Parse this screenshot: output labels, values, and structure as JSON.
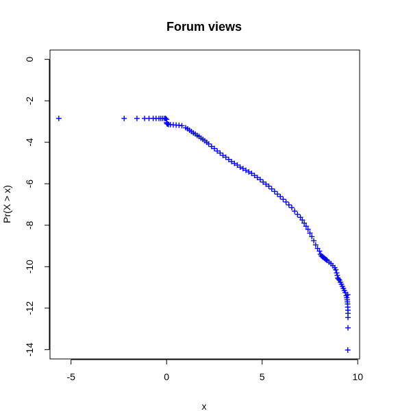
{
  "chart_data": {
    "type": "scatter",
    "title": "Forum views",
    "xlabel": "x",
    "ylabel": "Pr(X > x)",
    "xlim": [
      -6.1,
      10.1
    ],
    "ylim": [
      -14.45,
      0.45
    ],
    "xticks": [
      -5,
      0,
      5,
      10
    ],
    "yticks": [
      0,
      -2,
      -4,
      -6,
      -8,
      -10,
      -12,
      -14
    ],
    "xtick_labels": [
      "-5",
      "0",
      "5",
      "10"
    ],
    "ytick_labels": [
      "0",
      "-2",
      "-4",
      "-6",
      "-8",
      "-10",
      "-12",
      "-14"
    ],
    "marker": "+",
    "point_color": "#0000ff",
    "grid": false,
    "legend": "none",
    "x": [
      -5.64,
      -2.22,
      -1.55,
      -1.15,
      -0.92,
      -0.7,
      -0.55,
      -0.4,
      -0.3,
      -0.2,
      -0.1,
      -0.05,
      0,
      0,
      0.02,
      0.05,
      0.1,
      0.2,
      0.35,
      0.5,
      0.65,
      0.8,
      1.0,
      1.1,
      1.2,
      1.3,
      1.4,
      1.5,
      1.6,
      1.7,
      1.8,
      1.9,
      2.0,
      2.1,
      2.2,
      2.35,
      2.5,
      2.65,
      2.8,
      2.95,
      3.1,
      3.25,
      3.4,
      3.55,
      3.7,
      3.85,
      4.0,
      4.15,
      4.3,
      4.45,
      4.6,
      4.75,
      4.9,
      5.05,
      5.2,
      5.35,
      5.5,
      5.65,
      5.8,
      5.95,
      6.1,
      6.25,
      6.4,
      6.55,
      6.7,
      6.85,
      7.0,
      7.1,
      7.2,
      7.3,
      7.4,
      7.5,
      7.6,
      7.7,
      7.8,
      7.9,
      8.0,
      8.05,
      8.1,
      8.15,
      8.2,
      8.25,
      8.3,
      8.35,
      8.4,
      8.5,
      8.6,
      8.7,
      8.8,
      8.85,
      8.9,
      8.93,
      8.96,
      9.0,
      9.05,
      9.1,
      9.15,
      9.2,
      9.25,
      9.3,
      9.35,
      9.4,
      9.43,
      9.45,
      9.46,
      9.47,
      9.48,
      9.49,
      9.49,
      9.49,
      9.49,
      9.48,
      9.48
    ],
    "y": [
      -2.85,
      -2.85,
      -2.85,
      -2.85,
      -2.85,
      -2.85,
      -2.85,
      -2.85,
      -2.85,
      -2.85,
      -2.85,
      -2.85,
      -2.9,
      -3.05,
      -3.1,
      -3.12,
      -3.14,
      -3.15,
      -3.16,
      -3.17,
      -3.18,
      -3.2,
      -3.3,
      -3.35,
      -3.42,
      -3.48,
      -3.55,
      -3.6,
      -3.67,
      -3.72,
      -3.8,
      -3.86,
      -3.93,
      -4.0,
      -4.08,
      -4.2,
      -4.3,
      -4.42,
      -4.52,
      -4.63,
      -4.72,
      -4.83,
      -4.93,
      -5.02,
      -5.1,
      -5.2,
      -5.27,
      -5.35,
      -5.43,
      -5.5,
      -5.6,
      -5.7,
      -5.8,
      -5.92,
      -6.02,
      -6.12,
      -6.25,
      -6.37,
      -6.5,
      -6.62,
      -6.75,
      -6.88,
      -7.02,
      -7.15,
      -7.32,
      -7.48,
      -7.62,
      -7.75,
      -7.9,
      -8.05,
      -8.2,
      -8.38,
      -8.55,
      -8.75,
      -8.95,
      -9.12,
      -9.25,
      -9.4,
      -9.48,
      -9.52,
      -9.55,
      -9.58,
      -9.62,
      -9.66,
      -9.7,
      -9.78,
      -9.85,
      -9.95,
      -10.05,
      -10.15,
      -10.3,
      -10.42,
      -10.55,
      -10.6,
      -10.65,
      -10.75,
      -10.85,
      -10.95,
      -11.05,
      -11.15,
      -11.25,
      -11.4,
      -11.5,
      -11.6,
      -11.7,
      -11.8,
      -11.95,
      -12.1,
      -12.25,
      -12.45,
      -12.95,
      -14.02,
      -11.35
    ]
  }
}
